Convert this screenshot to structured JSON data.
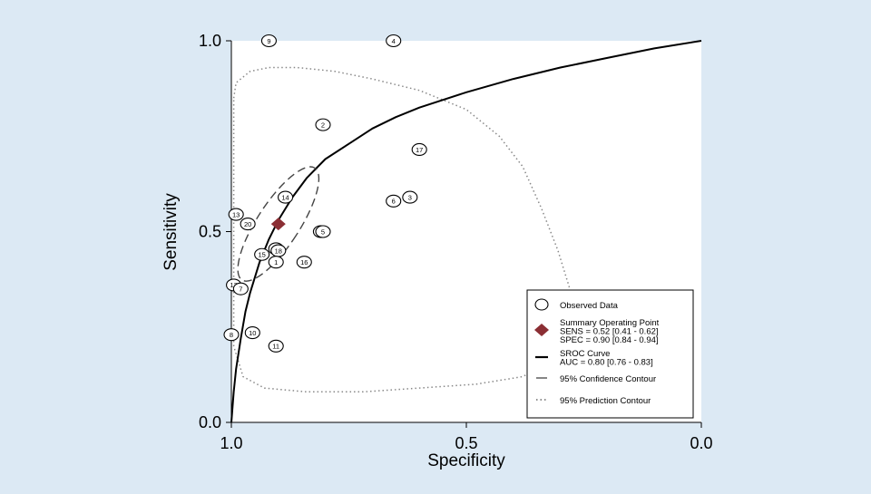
{
  "chart_data": {
    "type": "scatter",
    "title": "",
    "xlabel": "Specificity",
    "ylabel": "Sensitivity",
    "x_reversed": true,
    "xlim": [
      1.0,
      0.0
    ],
    "ylim": [
      0.0,
      1.0
    ],
    "x_ticks": [
      {
        "value": 1.0,
        "label": "1.0"
      },
      {
        "value": 0.5,
        "label": "0.5"
      },
      {
        "value": 0.0,
        "label": "0.0"
      }
    ],
    "y_ticks": [
      {
        "value": 0.0,
        "label": "0.0"
      },
      {
        "value": 0.5,
        "label": "0.5"
      },
      {
        "value": 1.0,
        "label": "1.0"
      }
    ],
    "grid": false,
    "observed_points": [
      {
        "id": "9",
        "spec": 0.92,
        "sens": 1.0
      },
      {
        "id": "4",
        "spec": 0.655,
        "sens": 1.0
      },
      {
        "id": "2",
        "spec": 0.805,
        "sens": 0.78
      },
      {
        "id": "17",
        "spec": 0.6,
        "sens": 0.715
      },
      {
        "id": "14",
        "spec": 0.885,
        "sens": 0.59
      },
      {
        "id": "3",
        "spec": 0.62,
        "sens": 0.59
      },
      {
        "id": "6",
        "spec": 0.655,
        "sens": 0.58
      },
      {
        "id": "13",
        "spec": 0.99,
        "sens": 0.545
      },
      {
        "id": "20",
        "spec": 0.965,
        "sens": 0.52
      },
      {
        "id": "25",
        "spec": 0.81,
        "sens": 0.5
      },
      {
        "id": "5",
        "spec": 0.805,
        "sens": 0.5
      },
      {
        "id": "19",
        "spec": 0.905,
        "sens": 0.455
      },
      {
        "id": "18",
        "spec": 0.9,
        "sens": 0.45
      },
      {
        "id": "15",
        "spec": 0.935,
        "sens": 0.44
      },
      {
        "id": "1",
        "spec": 0.905,
        "sens": 0.42
      },
      {
        "id": "16",
        "spec": 0.845,
        "sens": 0.42
      },
      {
        "id": "12",
        "spec": 0.995,
        "sens": 0.36
      },
      {
        "id": "7",
        "spec": 0.98,
        "sens": 0.35
      },
      {
        "id": "10",
        "spec": 0.955,
        "sens": 0.235
      },
      {
        "id": "8",
        "spec": 1.0,
        "sens": 0.23
      },
      {
        "id": "11",
        "spec": 0.905,
        "sens": 0.2
      }
    ],
    "summary_point": {
      "spec": 0.9,
      "sens": 0.52
    },
    "sroc_curve": {
      "spec": [
        1.0,
        0.995,
        0.99,
        0.98,
        0.97,
        0.96,
        0.94,
        0.92,
        0.9,
        0.87,
        0.84,
        0.8,
        0.75,
        0.7,
        0.65,
        0.6,
        0.5,
        0.4,
        0.3,
        0.2,
        0.1,
        0.0
      ],
      "sens": [
        0.0,
        0.08,
        0.14,
        0.22,
        0.29,
        0.34,
        0.42,
        0.48,
        0.53,
        0.59,
        0.64,
        0.69,
        0.73,
        0.77,
        0.8,
        0.825,
        0.865,
        0.9,
        0.93,
        0.955,
        0.98,
        1.0
      ]
    },
    "confidence_contour": {
      "center": {
        "spec": 0.9,
        "sens": 0.52
      },
      "semi_axis_spec": 0.045,
      "semi_axis_sens": 0.175,
      "rotation_deg": 33
    },
    "prediction_contour": {
      "spec": [
        0.995,
        0.99,
        0.96,
        0.92,
        0.86,
        0.78,
        0.7,
        0.6,
        0.5,
        0.43,
        0.38,
        0.34,
        0.305,
        0.28,
        0.275,
        0.29,
        0.32,
        0.38,
        0.48,
        0.6,
        0.72,
        0.84,
        0.93,
        0.975,
        0.995,
        0.995
      ],
      "sens": [
        0.85,
        0.89,
        0.92,
        0.93,
        0.93,
        0.92,
        0.9,
        0.87,
        0.82,
        0.75,
        0.67,
        0.56,
        0.45,
        0.35,
        0.27,
        0.21,
        0.16,
        0.12,
        0.1,
        0.09,
        0.08,
        0.08,
        0.09,
        0.12,
        0.2,
        0.85
      ]
    },
    "legend": {
      "position": "bottom-right",
      "entries": [
        {
          "key": "observed",
          "lines": [
            "Observed Data"
          ]
        },
        {
          "key": "summary",
          "lines": [
            "Summary Operating Point",
            "SENS = 0.52 [0.41 - 0.62]",
            "SPEC = 0.90 [0.84 - 0.94]"
          ]
        },
        {
          "key": "sroc",
          "lines": [
            "SROC Curve",
            "AUC = 0.80 [0.76 - 0.83]"
          ]
        },
        {
          "key": "confidence",
          "lines": [
            "95% Confidence Contour"
          ]
        },
        {
          "key": "prediction",
          "lines": [
            "95% Prediction Contour"
          ]
        }
      ]
    },
    "colors": {
      "background": "#dce9f4",
      "plot_background": "#ffffff",
      "axis": "#000000",
      "summary_marker": "#8b2e34",
      "prediction_contour": "#888888"
    }
  }
}
